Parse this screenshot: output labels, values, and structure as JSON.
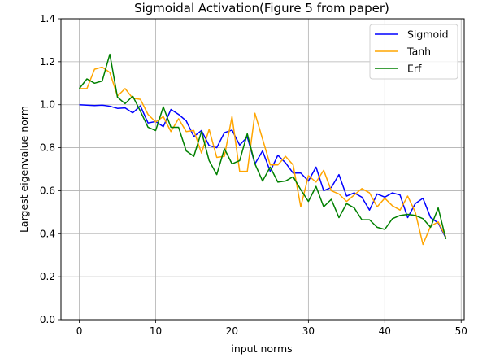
{
  "chart_data": {
    "type": "line",
    "title": "Sigmoidal Activation(Figure 5 from paper)",
    "xlabel": "input norms",
    "ylabel": "Largest eigenvalue norm",
    "xlim": [
      -2.4,
      50.4
    ],
    "ylim": [
      0,
      1.4
    ],
    "xticks": [
      0,
      10,
      20,
      30,
      40,
      50
    ],
    "yticks": [
      0.0,
      0.2,
      0.4,
      0.6,
      0.8,
      1.0,
      1.2,
      1.4
    ],
    "ytick_labels": [
      "0.0",
      "0.2",
      "0.4",
      "0.6",
      "0.8",
      "1.0",
      "1.2",
      "1.4"
    ],
    "grid": true,
    "legend_position": "top-right",
    "x": [
      0,
      1,
      2,
      3,
      4,
      5,
      6,
      7,
      8,
      9,
      10,
      11,
      12,
      13,
      14,
      15,
      16,
      17,
      18,
      19,
      20,
      21,
      22,
      23,
      24,
      25,
      26,
      27,
      28,
      29,
      30,
      31,
      32,
      33,
      34,
      35,
      36,
      37,
      38,
      39,
      40,
      41,
      42,
      43,
      44,
      45,
      46,
      47,
      48
    ],
    "series": [
      {
        "name": "Sigmoid",
        "color": "#0000ff",
        "values": [
          1.0,
          0.998,
          0.996,
          0.998,
          0.993,
          0.983,
          0.985,
          0.962,
          0.995,
          0.915,
          0.922,
          0.898,
          0.978,
          0.955,
          0.925,
          0.852,
          0.88,
          0.81,
          0.8,
          0.87,
          0.882,
          0.812,
          0.85,
          0.725,
          0.785,
          0.69,
          0.765,
          0.73,
          0.682,
          0.682,
          0.645,
          0.71,
          0.6,
          0.615,
          0.675,
          0.575,
          0.59,
          0.57,
          0.51,
          0.585,
          0.57,
          0.59,
          0.58,
          0.475,
          0.54,
          0.565,
          0.475,
          0.45,
          0.38
        ]
      },
      {
        "name": "Tanh",
        "color": "#ffa500",
        "values": [
          1.075,
          1.075,
          1.165,
          1.175,
          1.15,
          1.04,
          1.075,
          1.03,
          1.025,
          0.955,
          0.92,
          0.945,
          0.875,
          0.935,
          0.875,
          0.88,
          0.775,
          0.885,
          0.755,
          0.76,
          0.945,
          0.69,
          0.69,
          0.96,
          0.84,
          0.72,
          0.72,
          0.76,
          0.72,
          0.525,
          0.67,
          0.64,
          0.695,
          0.6,
          0.585,
          0.55,
          0.58,
          0.61,
          0.59,
          0.525,
          0.565,
          0.53,
          0.51,
          0.575,
          0.5,
          0.35,
          0.435,
          0.455,
          0.385
        ]
      },
      {
        "name": "Erf",
        "color": "#008000",
        "values": [
          1.075,
          1.12,
          1.1,
          1.11,
          1.235,
          1.035,
          1.005,
          1.04,
          0.97,
          0.895,
          0.88,
          0.99,
          0.895,
          0.895,
          0.785,
          0.76,
          0.875,
          0.74,
          0.675,
          0.795,
          0.725,
          0.74,
          0.865,
          0.725,
          0.645,
          0.71,
          0.64,
          0.645,
          0.665,
          0.605,
          0.55,
          0.62,
          0.525,
          0.56,
          0.475,
          0.54,
          0.52,
          0.465,
          0.465,
          0.43,
          0.42,
          0.47,
          0.485,
          0.49,
          0.485,
          0.47,
          0.43,
          0.52,
          0.375
        ]
      }
    ]
  }
}
